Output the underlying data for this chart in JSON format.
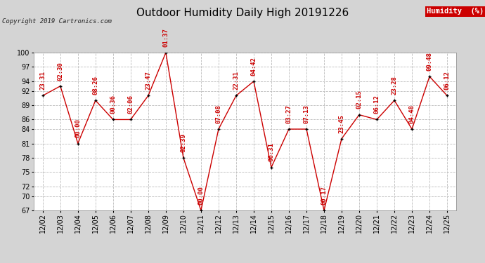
{
  "title": "Outdoor Humidity Daily High 20191226",
  "copyright": "Copyright 2019 Cartronics.com",
  "legend_label": "Humidity  (%)",
  "legend_bg": "#cc0000",
  "legend_text_color": "#ffffff",
  "ylim": [
    67,
    100
  ],
  "yticks": [
    67,
    70,
    72,
    75,
    78,
    81,
    84,
    86,
    89,
    92,
    94,
    97,
    100
  ],
  "bg_color": "#d4d4d4",
  "plot_bg_color": "#ffffff",
  "grid_color": "#bbbbbb",
  "line_color": "#cc0000",
  "marker_color": "#000000",
  "label_color": "#cc0000",
  "dates": [
    "12/02",
    "12/03",
    "12/04",
    "12/05",
    "12/06",
    "12/07",
    "12/08",
    "12/09",
    "12/10",
    "12/11",
    "12/12",
    "12/13",
    "12/14",
    "12/15",
    "12/16",
    "12/17",
    "12/18",
    "12/19",
    "12/20",
    "12/21",
    "12/22",
    "12/23",
    "12/24",
    "12/25"
  ],
  "values": [
    91,
    93,
    81,
    90,
    86,
    86,
    91,
    100,
    78,
    67,
    84,
    91,
    94,
    76,
    84,
    84,
    67,
    82,
    87,
    86,
    90,
    84,
    95,
    91
  ],
  "time_labels": [
    "23:31",
    "02:30",
    "00:00",
    "08:26",
    "00:36",
    "02:06",
    "23:47",
    "01:37",
    "02:39",
    "00:00",
    "07:08",
    "22:31",
    "04:42",
    "06:31",
    "03:27",
    "07:13",
    "00:17",
    "23:45",
    "02:15",
    "06:12",
    "23:28",
    "04:48",
    "09:48",
    "06:12"
  ],
  "title_fontsize": 11,
  "label_fontsize": 6.5,
  "tick_fontsize": 7,
  "copyright_fontsize": 6.5
}
